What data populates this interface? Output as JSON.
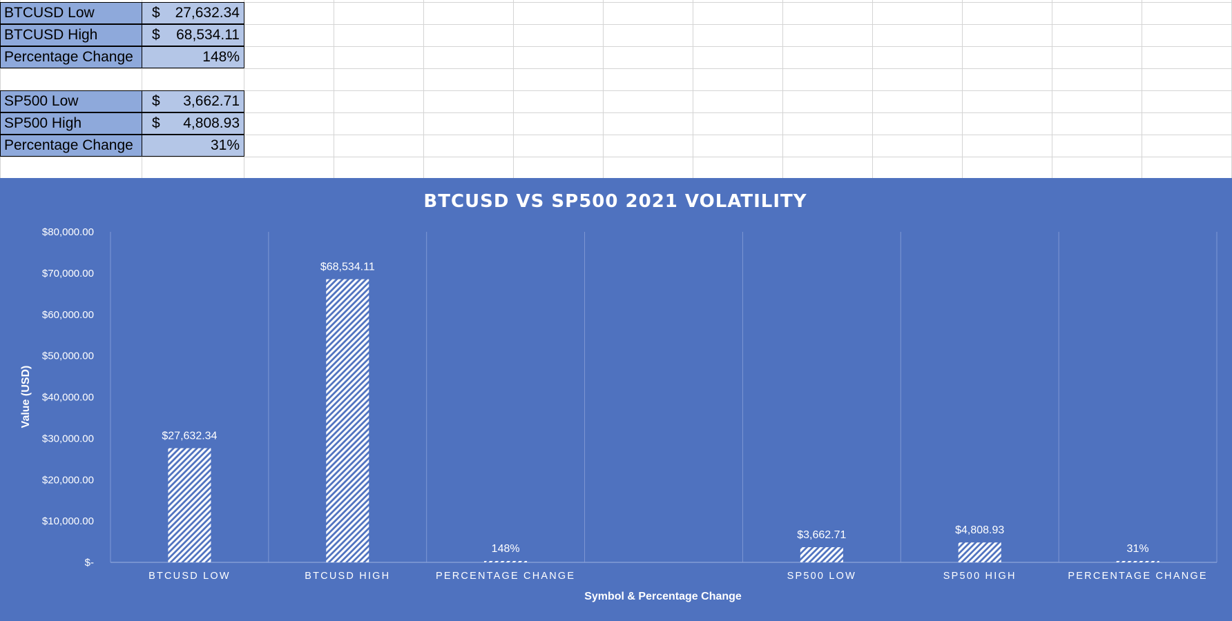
{
  "table": {
    "btc": [
      {
        "label": "BTCUSD Low",
        "currency": "$",
        "value": "27,632.34"
      },
      {
        "label": "BTCUSD High",
        "currency": "$",
        "value": "68,534.11"
      },
      {
        "label": "Percentage Change",
        "currency": "",
        "value": "148%"
      }
    ],
    "sp": [
      {
        "label": "SP500 Low",
        "currency": "$",
        "value": "3,662.71"
      },
      {
        "label": "SP500 High",
        "currency": "$",
        "value": "4,808.93"
      },
      {
        "label": "Percentage Change",
        "currency": "",
        "value": "31%"
      }
    ]
  },
  "chart_data": {
    "type": "bar",
    "title": "BTCUSD VS SP500 2021 VOLATILITY",
    "xlabel": "Symbol & Percentage Change",
    "ylabel": "Value (USD)",
    "ylim": [
      0,
      80000
    ],
    "yticks": [
      {
        "value": 0,
        "label": "$-"
      },
      {
        "value": 10000,
        "label": "$10,000.00"
      },
      {
        "value": 20000,
        "label": "$20,000.00"
      },
      {
        "value": 30000,
        "label": "$30,000.00"
      },
      {
        "value": 40000,
        "label": "$40,000.00"
      },
      {
        "value": 50000,
        "label": "$50,000.00"
      },
      {
        "value": 60000,
        "label": "$60,000.00"
      },
      {
        "value": 70000,
        "label": "$70,000.00"
      },
      {
        "value": 80000,
        "label": "$80,000.00"
      }
    ],
    "categories": [
      "BTCUSD LOW",
      "BTCUSD HIGH",
      "PERCENTAGE CHANGE",
      "",
      "SP500 LOW",
      "SP500 HIGH",
      "PERCENTAGE CHANGE"
    ],
    "values": [
      27632.34,
      68534.11,
      1.48,
      null,
      3662.71,
      4808.93,
      0.31
    ],
    "data_labels": [
      "$27,632.34",
      "$68,534.11",
      "148%",
      "",
      "$3,662.71",
      "$4,808.93",
      "31%"
    ],
    "grid": true,
    "bar_fill": "diagonal-hatch-white",
    "background": "#4f72bf"
  }
}
